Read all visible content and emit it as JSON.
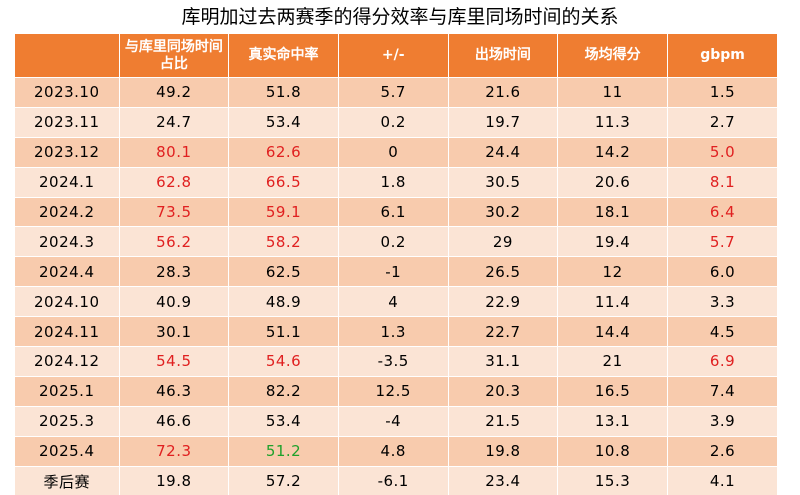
{
  "chart_data": {
    "type": "table",
    "title": "库明加过去两赛季的得分效率与库里同场时间的关系",
    "columns": [
      "",
      "与库里同场时间占比",
      "真实命中率",
      "+/-",
      "出场时间",
      "场均得分",
      "gbpm"
    ],
    "rows": [
      {
        "period": "2023.10",
        "values": [
          "49.2",
          "51.8",
          "5.7",
          "21.6",
          "11",
          "1.5"
        ]
      },
      {
        "period": "2023.11",
        "values": [
          "24.7",
          "53.4",
          "0.2",
          "19.7",
          "11.3",
          "2.7"
        ]
      },
      {
        "period": "2023.12",
        "values": [
          "80.1",
          "62.6",
          "0",
          "24.4",
          "14.2",
          "5.0"
        ]
      },
      {
        "period": "2024.1",
        "values": [
          "62.8",
          "66.5",
          "1.8",
          "30.5",
          "20.6",
          "8.1"
        ]
      },
      {
        "period": "2024.2",
        "values": [
          "73.5",
          "59.1",
          "6.1",
          "30.2",
          "18.1",
          "6.4"
        ]
      },
      {
        "period": "2024.3",
        "values": [
          "56.2",
          "58.2",
          "0.2",
          "29",
          "19.4",
          "5.7"
        ]
      },
      {
        "period": "2024.4",
        "values": [
          "28.3",
          "62.5",
          "-1",
          "26.5",
          "12",
          "6.0"
        ]
      },
      {
        "period": "2024.10",
        "values": [
          "40.9",
          "48.9",
          "4",
          "22.9",
          "11.4",
          "3.3"
        ]
      },
      {
        "period": "2024.11",
        "values": [
          "30.1",
          "51.1",
          "1.3",
          "22.7",
          "14.4",
          "4.5"
        ]
      },
      {
        "period": "2024.12",
        "values": [
          "54.5",
          "54.6",
          "-3.5",
          "31.1",
          "21",
          "6.9"
        ]
      },
      {
        "period": "2025.1",
        "values": [
          "46.3",
          "82.2",
          "12.5",
          "20.3",
          "16.5",
          "7.4"
        ]
      },
      {
        "period": "2025.3",
        "values": [
          "46.6",
          "53.4",
          "-4",
          "21.5",
          "13.1",
          "3.9"
        ]
      },
      {
        "period": "2025.4",
        "values": [
          "72.3",
          "51.2",
          "4.8",
          "19.8",
          "10.8",
          "2.6"
        ]
      },
      {
        "period": "季后赛",
        "values": [
          "19.8",
          "57.2",
          "-6.1",
          "23.4",
          "15.3",
          "4.1"
        ]
      }
    ],
    "highlights": [
      {
        "row": 2,
        "col": 1,
        "color": "red"
      },
      {
        "row": 2,
        "col": 2,
        "color": "red"
      },
      {
        "row": 2,
        "col": 6,
        "color": "red"
      },
      {
        "row": 3,
        "col": 1,
        "color": "red"
      },
      {
        "row": 3,
        "col": 2,
        "color": "red"
      },
      {
        "row": 3,
        "col": 6,
        "color": "red"
      },
      {
        "row": 4,
        "col": 1,
        "color": "red"
      },
      {
        "row": 4,
        "col": 2,
        "color": "red"
      },
      {
        "row": 4,
        "col": 6,
        "color": "red"
      },
      {
        "row": 5,
        "col": 1,
        "color": "red"
      },
      {
        "row": 5,
        "col": 2,
        "color": "red"
      },
      {
        "row": 5,
        "col": 6,
        "color": "red"
      },
      {
        "row": 9,
        "col": 1,
        "color": "red"
      },
      {
        "row": 9,
        "col": 2,
        "color": "red"
      },
      {
        "row": 9,
        "col": 6,
        "color": "red"
      },
      {
        "row": 12,
        "col": 1,
        "color": "red"
      },
      {
        "row": 12,
        "col": 2,
        "color": "green"
      }
    ],
    "colors": {
      "header": "#ef7d31",
      "band_odd": "#f8cbad",
      "band_even": "#fbe4d5",
      "red": "#e02020",
      "green": "#1fa12b"
    }
  }
}
